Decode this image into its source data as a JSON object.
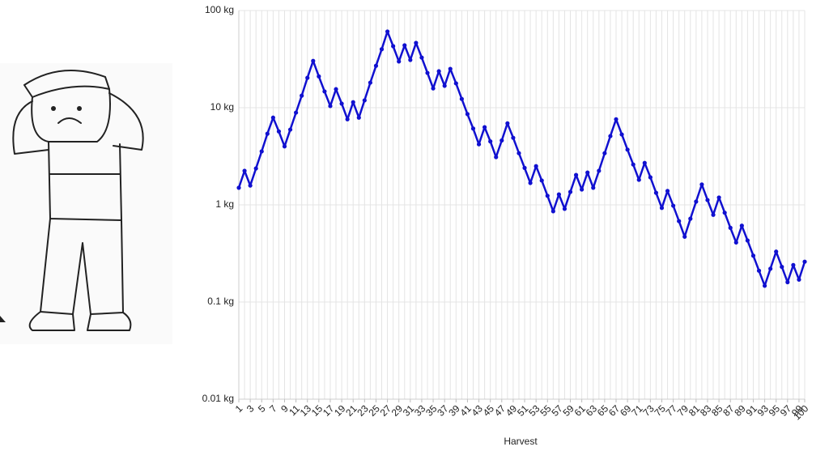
{
  "chart_data": {
    "type": "line",
    "log_y": true,
    "grid": true,
    "x_label": "Harvest",
    "x": [
      1,
      2,
      3,
      4,
      5,
      6,
      7,
      8,
      9,
      10,
      11,
      12,
      13,
      14,
      15,
      16,
      17,
      18,
      19,
      20,
      21,
      22,
      23,
      24,
      25,
      26,
      27,
      28,
      29,
      30,
      31,
      32,
      33,
      34,
      35,
      36,
      37,
      38,
      39,
      40,
      41,
      42,
      43,
      44,
      45,
      46,
      47,
      48,
      49,
      50,
      51,
      52,
      53,
      54,
      55,
      56,
      57,
      58,
      59,
      60,
      61,
      62,
      63,
      64,
      65,
      66,
      67,
      68,
      69,
      70,
      71,
      72,
      73,
      74,
      75,
      76,
      77,
      78,
      79,
      80,
      81,
      82,
      83,
      84,
      85,
      86,
      87,
      88,
      89,
      90,
      91,
      92,
      93,
      94,
      95,
      96,
      97,
      98,
      99,
      100
    ],
    "xlim": [
      1,
      100
    ],
    "xticks": [
      1,
      3,
      5,
      7,
      9,
      11,
      13,
      15,
      17,
      19,
      21,
      23,
      25,
      27,
      29,
      31,
      33,
      35,
      37,
      39,
      41,
      43,
      45,
      47,
      49,
      51,
      53,
      55,
      57,
      59,
      61,
      63,
      65,
      67,
      69,
      71,
      73,
      75,
      77,
      79,
      81,
      83,
      85,
      87,
      89,
      91,
      93,
      95,
      97,
      99,
      100
    ],
    "ylim": [
      0.01,
      100
    ],
    "yticks": [
      {
        "value": 0.01,
        "label": "0.01 kg"
      },
      {
        "value": 0.1,
        "label": "0.1 kg"
      },
      {
        "value": 1,
        "label": "1 kg"
      },
      {
        "value": 10,
        "label": "10 kg"
      },
      {
        "value": 100,
        "label": "100 kg"
      }
    ],
    "series": [
      {
        "color": "#1010d0",
        "values": [
          1.5,
          2.24,
          1.58,
          2.37,
          3.55,
          5.4,
          7.9,
          5.7,
          4.0,
          5.95,
          8.9,
          13.3,
          20.3,
          30.3,
          21,
          14.7,
          10.4,
          15.5,
          11,
          7.6,
          11.4,
          7.9,
          11.9,
          18.1,
          27,
          40,
          60.8,
          43,
          29.9,
          43.8,
          31,
          46.4,
          32.8,
          22.8,
          15.8,
          23.7,
          16.8,
          25.1,
          17.8,
          12.3,
          8.6,
          6.1,
          4.2,
          6.3,
          4.5,
          3.1,
          4.6,
          6.9,
          4.9,
          3.4,
          2.4,
          1.68,
          2.5,
          1.78,
          1.24,
          0.86,
          1.28,
          0.91,
          1.36,
          2.03,
          1.44,
          2.15,
          1.5,
          2.24,
          3.4,
          5.1,
          7.6,
          5.3,
          3.7,
          2.6,
          1.81,
          2.7,
          1.92,
          1.33,
          0.93,
          1.39,
          0.98,
          0.68,
          0.47,
          0.72,
          1.08,
          1.62,
          1.12,
          0.79,
          1.19,
          0.83,
          0.58,
          0.41,
          0.61,
          0.43,
          0.3,
          0.21,
          0.147,
          0.22,
          0.33,
          0.23,
          0.16,
          0.24,
          0.17,
          0.26
        ]
      }
    ]
  }
}
